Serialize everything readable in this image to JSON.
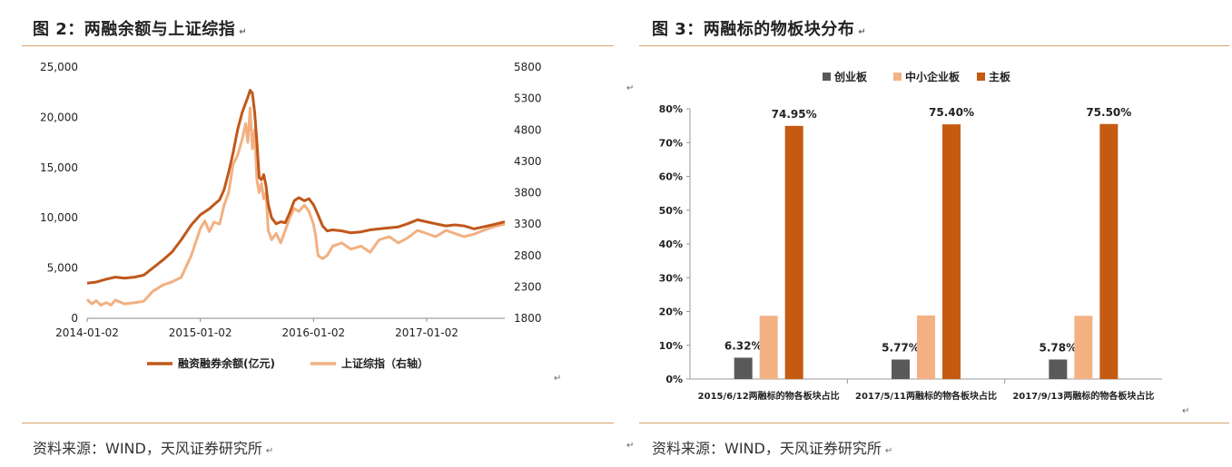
{
  "left": {
    "title": "图 2：两融余额与上证综指",
    "source": "资料来源：WIND，天风证券研究所",
    "chart_data": {
      "type": "line",
      "x_ticks": [
        "2014-01-02",
        "2015-01-02",
        "2016-01-02",
        "2017-01-02"
      ],
      "x_range": [
        2014.0,
        2017.69
      ],
      "y_left": {
        "ticks": [
          "0",
          "5,000",
          "10,000",
          "15,000",
          "20,000",
          "25,000"
        ],
        "range": [
          0,
          25000
        ]
      },
      "y_right": {
        "ticks": [
          "1800",
          "2300",
          "2800",
          "3300",
          "3800",
          "4300",
          "4800",
          "5300",
          "5800"
        ],
        "range": [
          1800,
          5800
        ]
      },
      "series": [
        {
          "name": "融资融券余额(亿元)",
          "axis": "left",
          "color": "#c0581b",
          "x": [
            2014.0,
            2014.08,
            2014.17,
            2014.25,
            2014.33,
            2014.42,
            2014.5,
            2014.58,
            2014.67,
            2014.75,
            2014.83,
            2014.92,
            2015.0,
            2015.08,
            2015.12,
            2015.17,
            2015.21,
            2015.25,
            2015.29,
            2015.33,
            2015.37,
            2015.42,
            2015.44,
            2015.46,
            2015.48,
            2015.5,
            2015.52,
            2015.54,
            2015.56,
            2015.58,
            2015.6,
            2015.63,
            2015.67,
            2015.71,
            2015.75,
            2015.79,
            2015.83,
            2015.87,
            2015.92,
            2015.96,
            2016.0,
            2016.04,
            2016.08,
            2016.12,
            2016.17,
            2016.25,
            2016.33,
            2016.42,
            2016.5,
            2016.58,
            2016.67,
            2016.75,
            2016.83,
            2016.92,
            2017.0,
            2017.08,
            2017.17,
            2017.25,
            2017.33,
            2017.42,
            2017.5,
            2017.58,
            2017.69
          ],
          "y": [
            3500,
            3600,
            3900,
            4100,
            4000,
            4100,
            4300,
            5000,
            5800,
            6600,
            7800,
            9300,
            10300,
            10900,
            11300,
            11800,
            12800,
            14500,
            16500,
            18800,
            20500,
            22000,
            22700,
            22400,
            20500,
            17500,
            14000,
            13800,
            14300,
            13200,
            11300,
            10000,
            9400,
            9600,
            9500,
            10500,
            11700,
            12000,
            11700,
            11900,
            11300,
            10300,
            9200,
            8700,
            8800,
            8700,
            8500,
            8600,
            8800,
            8900,
            9000,
            9100,
            9400,
            9800,
            9600,
            9400,
            9200,
            9300,
            9200,
            8900,
            9100,
            9300,
            9600
          ]
        },
        {
          "name": "上证综指（右轴）",
          "axis": "right",
          "color": "#f2b081",
          "x": [
            2014.0,
            2014.04,
            2014.08,
            2014.12,
            2014.17,
            2014.21,
            2014.25,
            2014.33,
            2014.42,
            2014.5,
            2014.58,
            2014.67,
            2014.75,
            2014.83,
            2014.92,
            2015.0,
            2015.04,
            2015.08,
            2015.12,
            2015.17,
            2015.21,
            2015.25,
            2015.29,
            2015.33,
            2015.37,
            2015.4,
            2015.42,
            2015.44,
            2015.46,
            2015.48,
            2015.5,
            2015.52,
            2015.54,
            2015.56,
            2015.58,
            2015.6,
            2015.63,
            2015.67,
            2015.71,
            2015.75,
            2015.79,
            2015.83,
            2015.87,
            2015.92,
            2015.96,
            2016.0,
            2016.02,
            2016.04,
            2016.08,
            2016.12,
            2016.17,
            2016.25,
            2016.33,
            2016.42,
            2016.5,
            2016.58,
            2016.67,
            2016.75,
            2016.83,
            2016.92,
            2017.0,
            2017.08,
            2017.17,
            2017.25,
            2017.33,
            2017.42,
            2017.5,
            2017.58,
            2017.69
          ],
          "y": [
            2100,
            2030,
            2080,
            2010,
            2050,
            2010,
            2090,
            2030,
            2050,
            2070,
            2230,
            2330,
            2380,
            2450,
            2800,
            3230,
            3350,
            3180,
            3330,
            3300,
            3600,
            3800,
            4250,
            4400,
            4650,
            4900,
            4600,
            5150,
            4500,
            4800,
            4000,
            3800,
            3950,
            3700,
            3800,
            3200,
            3050,
            3150,
            3000,
            3200,
            3400,
            3550,
            3500,
            3600,
            3500,
            3300,
            3100,
            2800,
            2750,
            2800,
            2950,
            3000,
            2900,
            2950,
            2850,
            3050,
            3100,
            3000,
            3080,
            3200,
            3150,
            3100,
            3200,
            3150,
            3100,
            3140,
            3200,
            3250,
            3300
          ]
        }
      ]
    }
  },
  "right": {
    "title": "图 3：两融标的物板块分布",
    "source": "资料来源：WIND，天风证券研究所",
    "chart_data": {
      "type": "bar",
      "categories": [
        "2015/6/12两融标的物各板块占比",
        "2017/5/11两融标的物各板块占比",
        "2017/9/13两融标的物各板块占比"
      ],
      "y_ticks": [
        "0%",
        "10%",
        "20%",
        "30%",
        "40%",
        "50%",
        "60%",
        "70%",
        "80%"
      ],
      "ylim": [
        0,
        80
      ],
      "series": [
        {
          "name": "创业板",
          "color": "#595959",
          "values": [
            6.32,
            5.77,
            5.78
          ],
          "labels": [
            "6.32%",
            "5.77%",
            "5.78%"
          ]
        },
        {
          "name": "中小企业板",
          "color": "#f4b183",
          "values": [
            18.73,
            18.83,
            18.72
          ],
          "labels": [
            "",
            "",
            ""
          ]
        },
        {
          "name": "主板",
          "color": "#c55a11",
          "values": [
            74.95,
            75.4,
            75.5
          ],
          "labels": [
            "74.95%",
            "75.40%",
            "75.50%"
          ]
        }
      ]
    }
  }
}
